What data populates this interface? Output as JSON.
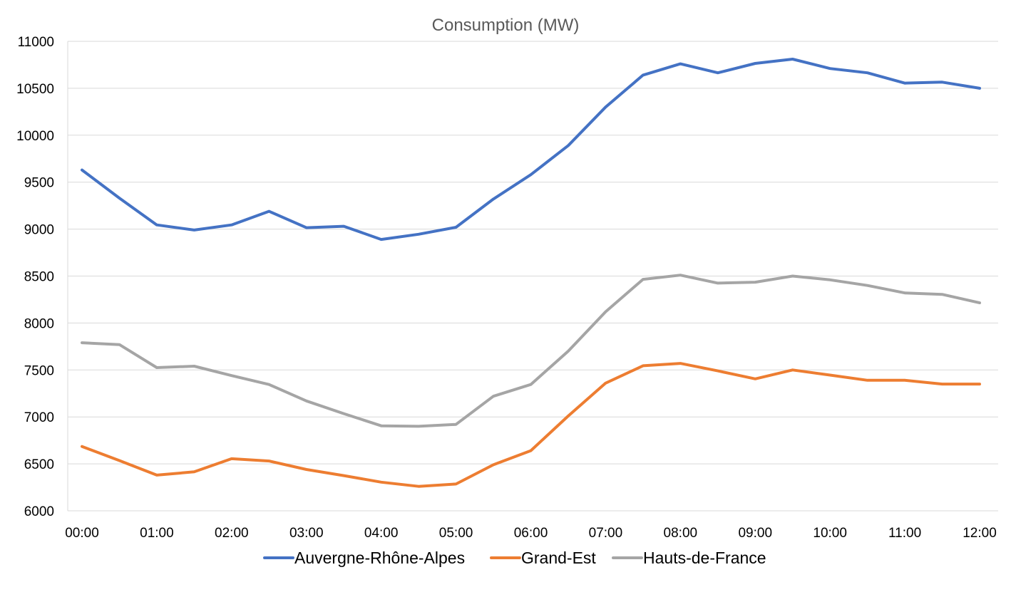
{
  "chart_data": {
    "type": "line",
    "title": "Consumption (MW)",
    "xlabel": "",
    "ylabel": "",
    "ylim": [
      6000,
      11000
    ],
    "ytick_step": 500,
    "grid": "horizontal",
    "legend_position": "bottom",
    "x": [
      "00:00",
      "00:30",
      "01:00",
      "01:30",
      "02:00",
      "02:30",
      "03:00",
      "03:30",
      "04:00",
      "04:30",
      "05:00",
      "05:30",
      "06:00",
      "06:30",
      "07:00",
      "07:30",
      "08:00",
      "08:30",
      "09:00",
      "09:30",
      "10:00",
      "10:30",
      "11:00",
      "11:30",
      "12:00"
    ],
    "x_tick_labels": [
      "00:00",
      "01:00",
      "02:00",
      "03:00",
      "04:00",
      "05:00",
      "06:00",
      "07:00",
      "08:00",
      "09:00",
      "10:00",
      "11:00",
      "12:00"
    ],
    "y_tick_labels": [
      "6000",
      "6500",
      "7000",
      "7500",
      "8000",
      "8500",
      "9000",
      "9500",
      "10000",
      "10500",
      "11000"
    ],
    "series": [
      {
        "name": "Auvergne-Rhône-Alpes",
        "color": "#4472C4",
        "values": [
          9630,
          9330,
          9045,
          8990,
          9045,
          9190,
          9015,
          9030,
          8890,
          8945,
          9020,
          9320,
          9580,
          9890,
          10300,
          10640,
          10760,
          10665,
          10765,
          10810,
          10710,
          10665,
          10555,
          10565,
          10500
        ]
      },
      {
        "name": "Grand-Est",
        "color": "#ED7D31",
        "values": [
          6685,
          6535,
          6380,
          6415,
          6555,
          6530,
          6440,
          6375,
          6305,
          6260,
          6285,
          6490,
          6640,
          7010,
          7360,
          7545,
          7570,
          7490,
          7405,
          7500,
          7445,
          7390,
          7390,
          7350,
          7350
        ]
      },
      {
        "name": "Hauts-de-France",
        "color": "#A5A5A5",
        "values": [
          7790,
          7770,
          7525,
          7540,
          7440,
          7345,
          7170,
          7035,
          6905,
          6900,
          6920,
          7220,
          7345,
          7700,
          8120,
          8465,
          8510,
          8425,
          8435,
          8500,
          8460,
          8400,
          8320,
          8305,
          8215
        ]
      }
    ]
  }
}
